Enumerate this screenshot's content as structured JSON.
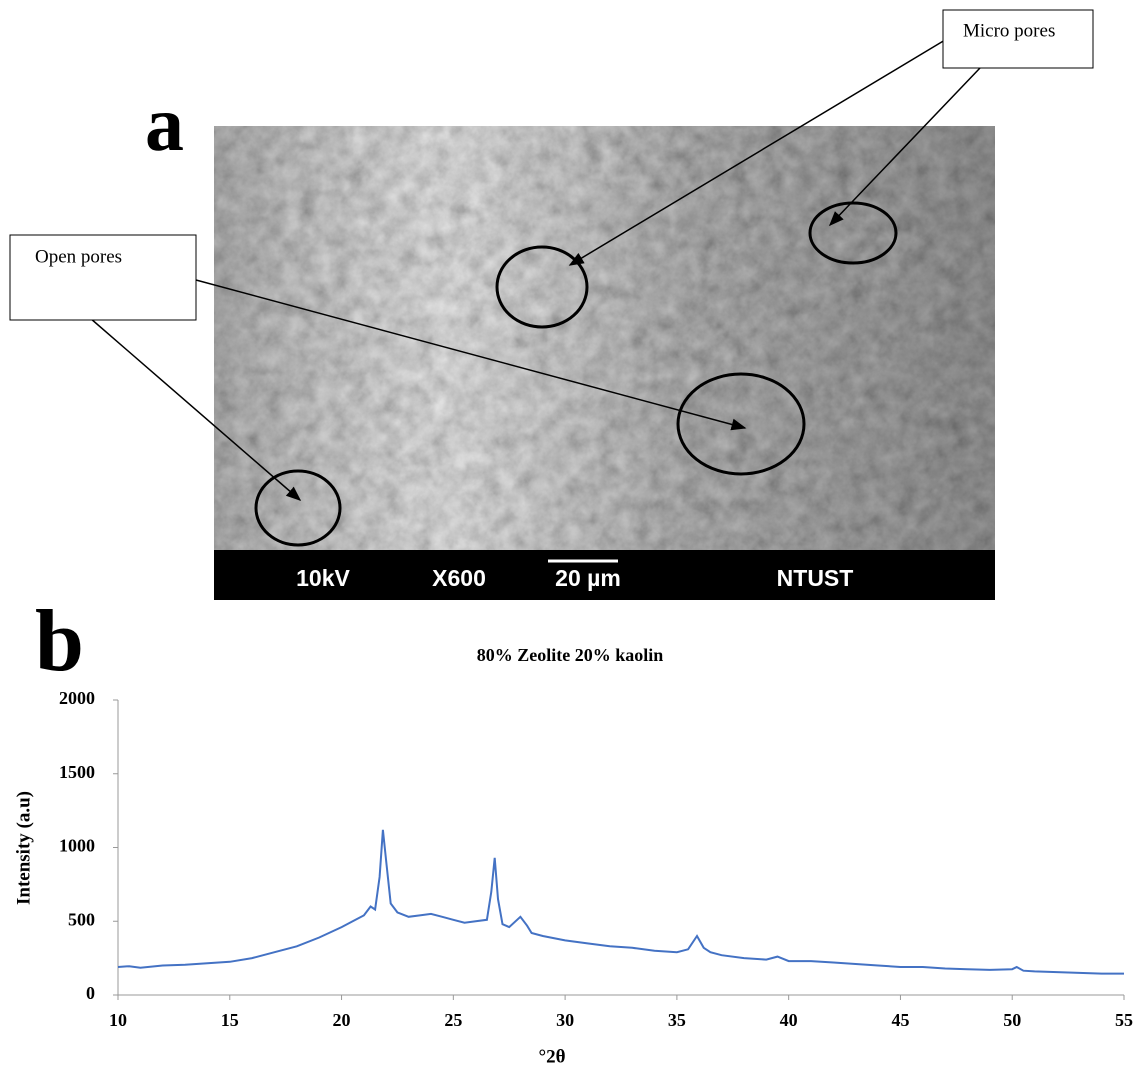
{
  "panel_labels": [
    "a",
    "b"
  ],
  "sem_image": {
    "annotations": [
      "Micro pores",
      "Open pores"
    ],
    "info_bar": [
      "10kV",
      "X600",
      "20 µm",
      "NTUST"
    ]
  },
  "chart_data": {
    "type": "line",
    "title": "80% Zeolite 20% kaolin",
    "x_label": "°2θ",
    "y_label": "Intensity (a.u)",
    "x": [
      10,
      10.5,
      11,
      12,
      13,
      14,
      15,
      16,
      17,
      18,
      19,
      20,
      20.5,
      21,
      21.3,
      21.5,
      21.7,
      21.85,
      22,
      22.2,
      22.5,
      23,
      23.5,
      24,
      24.5,
      25,
      25.5,
      26,
      26.5,
      26.7,
      26.85,
      27,
      27.2,
      27.5,
      28,
      28.3,
      28.5,
      29,
      30,
      31,
      32,
      33,
      34,
      35,
      35.5,
      35.9,
      36.2,
      36.5,
      37,
      38,
      39,
      39.5,
      40,
      41,
      42,
      43,
      44,
      45,
      46,
      47,
      48,
      49,
      50,
      50.2,
      50.5,
      51,
      52,
      53,
      54,
      55
    ],
    "values": [
      190,
      195,
      185,
      200,
      205,
      215,
      225,
      250,
      290,
      330,
      390,
      460,
      500,
      540,
      600,
      580,
      800,
      1120,
      900,
      620,
      560,
      530,
      540,
      550,
      530,
      510,
      490,
      500,
      510,
      700,
      930,
      650,
      480,
      460,
      530,
      470,
      420,
      400,
      370,
      350,
      330,
      320,
      300,
      290,
      310,
      400,
      320,
      290,
      270,
      250,
      240,
      260,
      230,
      230,
      220,
      210,
      200,
      190,
      190,
      180,
      175,
      170,
      175,
      190,
      165,
      160,
      155,
      150,
      145,
      145
    ],
    "color": "#4472c4",
    "xlim": [
      10,
      55
    ],
    "ylim": [
      0,
      2000
    ],
    "xticks": [
      10,
      15,
      20,
      25,
      30,
      35,
      40,
      45,
      50,
      55
    ],
    "yticks": [
      0,
      500,
      1000,
      1500,
      2000
    ],
    "grid": false
  }
}
